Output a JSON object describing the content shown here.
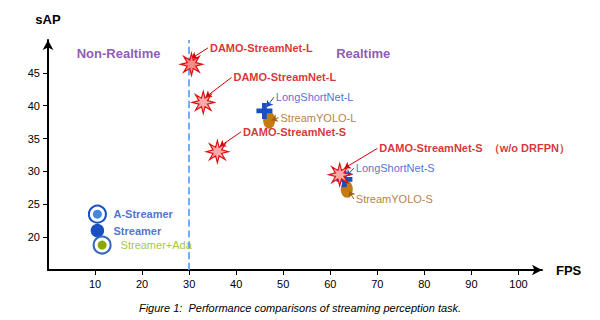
{
  "chart_data": {
    "type": "scatter",
    "xlabel": "FPS",
    "ylabel": "sAP",
    "caption": "Figure 1:  Performance comparisons of streaming perception task.",
    "xlim": [
      0,
      105
    ],
    "ylim": [
      15,
      50
    ],
    "xticks": [
      10,
      20,
      30,
      40,
      50,
      60,
      70,
      80,
      90,
      100
    ],
    "yticks": [
      20,
      25,
      30,
      35,
      40,
      45
    ],
    "grid": false,
    "vline_x": 30,
    "region_labels": [
      {
        "text": "Non-Realtime",
        "x": 15,
        "y": 49.0,
        "color": "#7030a0"
      },
      {
        "text": "Realtime",
        "x": 67,
        "y": 49.0,
        "color": "#7030a0"
      }
    ],
    "points": [
      {
        "x": 30.5,
        "y": 46.3,
        "marker": "star",
        "color": "#ff8888",
        "edge_color": "#dd1111"
      },
      {
        "x": 33,
        "y": 40.5,
        "marker": "star",
        "color": "#ffaaaa",
        "edge_color": "#dd1111"
      },
      {
        "x": 36,
        "y": 33.0,
        "marker": "star",
        "color": "#ffaaaa",
        "edge_color": "#dd1111"
      },
      {
        "x": 62,
        "y": 29.5,
        "marker": "star",
        "color": "#ffaaaa",
        "edge_color": "#dd1111"
      },
      {
        "x": 46,
        "y": 39.2,
        "marker": "plus",
        "color": "#1a4fc4",
        "edge_color": "#1a4fc4"
      },
      {
        "x": 63,
        "y": 28.8,
        "marker": "plus",
        "color": "#1a4fc4",
        "edge_color": "#1a4fc4"
      },
      {
        "x": 47,
        "y": 37.8,
        "marker": "ellipse",
        "color": "#c47a10",
        "edge_color": "#c47a10"
      },
      {
        "x": 63.5,
        "y": 27.3,
        "marker": "ellipse",
        "color": "#c47a10",
        "edge_color": "#c47a10"
      },
      {
        "x": 10.5,
        "y": 23.5,
        "marker": "ring",
        "color": "#4488dd",
        "edge_color": "#1a4fc4"
      },
      {
        "x": 10.5,
        "y": 21.0,
        "marker": "circle",
        "color": "#1a4fc4",
        "edge_color": "#1a4fc4"
      },
      {
        "x": 11.5,
        "y": 18.8,
        "marker": "ring",
        "color": "#88aa00",
        "edge_color": "#3366bb"
      }
    ],
    "annotations": [
      {
        "text": "DAMO-StreamNet-L",
        "x": 34,
        "y": 48.8,
        "color": "#cc0000",
        "bold": true,
        "arrow": [
          30.5,
          47.2
        ]
      },
      {
        "text": "DAMO-StreamNet-L",
        "x": 39,
        "y": 44.3,
        "color": "#cc0000",
        "bold": true,
        "arrow": [
          33.5,
          41.3
        ]
      },
      {
        "text": "DAMO-StreamNet-S",
        "x": 41,
        "y": 36.0,
        "color": "#cc0000",
        "bold": true,
        "arrow": [
          36.5,
          33.8
        ]
      },
      {
        "text": "DAMO-StreamNet-S  （w/o DRFPN）",
        "x": 70,
        "y": 33.5,
        "color": "#cc0000",
        "bold": true,
        "arrow": [
          63,
          30.5
        ]
      },
      {
        "text": "LongShortNet-L",
        "x": 48,
        "y": 41.3,
        "color": "#1a4fc4",
        "bold": false,
        "arrow": [
          46.5,
          39.8
        ]
      },
      {
        "text": "LongShortNet-S",
        "x": 65,
        "y": 30.5,
        "color": "#1a4fc4",
        "bold": false,
        "arrow": [
          63.5,
          29.3
        ]
      },
      {
        "text": "StreamYOLO-L",
        "x": 49,
        "y": 38.2,
        "color": "#a06010",
        "bold": false,
        "arrow": [
          47.5,
          37.8
        ]
      },
      {
        "text": "StreamYOLO-S",
        "x": 65,
        "y": 25.8,
        "color": "#a06010",
        "bold": false,
        "arrow": [
          64,
          27.0
        ]
      },
      {
        "text": "A-Streamer",
        "x": 13.5,
        "y": 23.5,
        "color": "#1a4fc4",
        "bold": true
      },
      {
        "text": "Streamer",
        "x": 13.5,
        "y": 21.0,
        "color": "#1a4fc4",
        "bold": true
      },
      {
        "text": "Streamer+Ada",
        "x": 15,
        "y": 18.8,
        "color": "#88bb00",
        "bold": false
      }
    ]
  }
}
